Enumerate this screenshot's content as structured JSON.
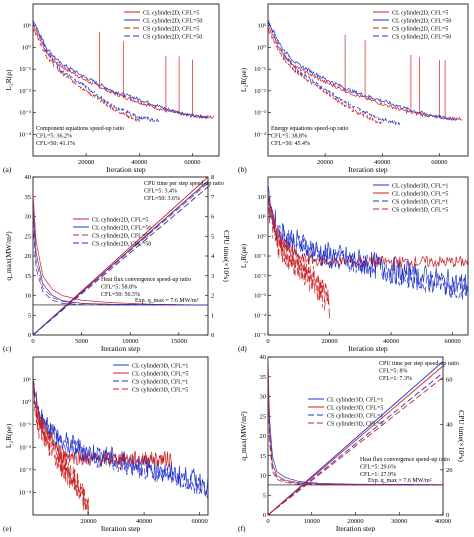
{
  "colors": {
    "red": "#cc2222",
    "blue": "#2233cc",
    "axis": "#000000"
  },
  "chart_data": [
    {
      "id": "a",
      "panel_label": "(a)",
      "type": "line",
      "log_y": true,
      "xlabel": "Iteration step",
      "ylabel": "L₂R(ρ)",
      "xlim": [
        0,
        70000
      ],
      "ylim": [
        1e-05,
        100
      ],
      "xticks": [
        20000,
        40000,
        60000
      ],
      "yticks": [
        0.0001,
        0.001,
        0.01,
        0.1,
        1,
        10
      ],
      "yticklabels": [
        "10⁻⁴",
        "10⁻³",
        "10⁻²",
        "10⁻¹",
        "10⁰",
        "10¹"
      ],
      "legend": "top-right",
      "annotation": [
        "Component equations speed-up ratio",
        "CFL=5: 36.2%",
        "CFL=50: 41.1%"
      ],
      "series": [
        {
          "name": "CL cylinder2D, CFL=5",
          "color": "#cc2222",
          "dash": "none",
          "x": [
            0,
            5000,
            10000,
            20000,
            30000,
            40000,
            50000,
            60000,
            68000
          ],
          "y": [
            12,
            0.6,
            0.15,
            0.03,
            0.008,
            0.003,
            0.0012,
            0.0007,
            0.0006
          ],
          "spikes": [
            25000,
            34000,
            50000,
            55000,
            60000
          ]
        },
        {
          "name": "CL cylinder2D, CFL=50",
          "color": "#2233cc",
          "dash": "none",
          "x": [
            0,
            5000,
            10000,
            20000,
            30000,
            40000,
            50000,
            60000,
            66000
          ],
          "y": [
            20,
            1,
            0.2,
            0.04,
            0.01,
            0.004,
            0.0015,
            0.0007,
            0.0006
          ],
          "spikes": []
        },
        {
          "name": "CS cylinder2D, CFL=5",
          "color": "#cc2222",
          "dash": "6,3",
          "x": [
            0,
            5000,
            10000,
            20000,
            30000,
            40000
          ],
          "y": [
            8,
            0.4,
            0.08,
            0.01,
            0.0015,
            0.0004
          ],
          "spikes": []
        },
        {
          "name": "CS cylinder2D, CFL=50",
          "color": "#2233cc",
          "dash": "6,3",
          "x": [
            0,
            5000,
            10000,
            20000,
            30000,
            40000,
            48000
          ],
          "y": [
            15,
            0.7,
            0.1,
            0.015,
            0.002,
            0.0006,
            0.0004
          ],
          "spikes": []
        }
      ]
    },
    {
      "id": "b",
      "panel_label": "(b)",
      "type": "line",
      "log_y": true,
      "xlabel": "Iteration step",
      "ylabel": "L₂R(ρe)",
      "xlim": [
        0,
        70000
      ],
      "ylim": [
        1e-05,
        100
      ],
      "xticks": [
        20000,
        40000,
        60000
      ],
      "yticks": [
        0.0001,
        0.001,
        0.01,
        0.1,
        1,
        10
      ],
      "yticklabels": [
        "10⁻⁴",
        "10⁻³",
        "10⁻²",
        "10⁻¹",
        "10⁰",
        "10¹"
      ],
      "legend": "top-right",
      "annotation": [
        "Energy equations speed-up ratio",
        "CFL=5: 38.8%",
        "CFL=50: 45.4%"
      ],
      "series": [
        {
          "name": "CL cylinder2D, CFL=5",
          "color": "#cc2222",
          "dash": "none",
          "x": [
            0,
            5000,
            10000,
            20000,
            30000,
            40000,
            50000,
            60000,
            68000
          ],
          "y": [
            10,
            0.5,
            0.12,
            0.025,
            0.007,
            0.0025,
            0.001,
            0.0006,
            0.0005
          ],
          "spikes": [
            27000,
            34000,
            50000,
            53000,
            60000,
            62000
          ]
        },
        {
          "name": "CL cylinder2D, CFL=50",
          "color": "#2233cc",
          "dash": "none",
          "x": [
            0,
            5000,
            10000,
            20000,
            30000,
            40000,
            50000,
            60000,
            66000
          ],
          "y": [
            18,
            0.9,
            0.18,
            0.035,
            0.009,
            0.0035,
            0.0013,
            0.0006,
            0.0005
          ],
          "spikes": []
        },
        {
          "name": "CS cylinder2D, CFL=5",
          "color": "#cc2222",
          "dash": "6,3",
          "x": [
            0,
            5000,
            10000,
            20000,
            30000,
            40000
          ],
          "y": [
            7,
            0.35,
            0.07,
            0.009,
            0.0012,
            0.0003
          ],
          "spikes": []
        },
        {
          "name": "CS cylinder2D, CFL=50",
          "color": "#2233cc",
          "dash": "6,3",
          "x": [
            0,
            5000,
            10000,
            20000,
            30000,
            40000,
            46000
          ],
          "y": [
            14,
            0.6,
            0.09,
            0.012,
            0.0018,
            0.0005,
            0.0003
          ],
          "spikes": []
        }
      ]
    },
    {
      "id": "c",
      "panel_label": "(c)",
      "type": "line",
      "log_y": false,
      "xlabel": "Iteration step",
      "ylabel": "q_max(MW/m²)",
      "y2label": "CPU time(×10³s)",
      "xlim": [
        0,
        18000
      ],
      "ylim": [
        0,
        40
      ],
      "y2lim": [
        0,
        8
      ],
      "xticks": [
        0,
        5000,
        10000,
        15000
      ],
      "yticks": [
        0,
        5,
        10,
        15,
        20,
        25,
        30,
        35,
        40
      ],
      "y2ticks": [
        0,
        1,
        2,
        3,
        4,
        5,
        6,
        7,
        8
      ],
      "legend": "upper-left",
      "annotation_top": [
        "CPU time per step speed-up ratio",
        "CFL=5: 3.4%",
        "CFL=50: 3.6%"
      ],
      "annotation": [
        "Heat flux convergence speed-up ratio",
        "CFL=5: 58.8%",
        "CFL=50: 56.5%"
      ],
      "exp_label": "Exp. q_max = 7.6 MW/m²",
      "exp_value": 7.6,
      "series": [
        {
          "name": "CL cylinder2D, CFL=5",
          "color": "#cc2222",
          "dash": "none",
          "x": [
            0,
            300,
            1000,
            2000,
            3000,
            5000,
            8000,
            12000,
            18000
          ],
          "y": [
            36,
            24,
            15,
            11.5,
            10,
            8.8,
            8.2,
            7.8,
            7.6
          ]
        },
        {
          "name": "CL cylinder2D, CFL=50",
          "color": "#2233cc",
          "dash": "none",
          "x": [
            0,
            300,
            1000,
            2000,
            3000,
            5000,
            8000,
            12000,
            18000
          ],
          "y": [
            33,
            21,
            13,
            10,
            8.7,
            8,
            7.8,
            7.7,
            7.6
          ]
        },
        {
          "name": "CS cylinder2D, CFL=5",
          "color": "#cc2222",
          "dash": "6,3",
          "x": [
            0,
            300,
            1000,
            2000,
            3000,
            5000,
            8000,
            12000,
            18000
          ],
          "y": [
            31,
            19,
            12,
            9.5,
            8.5,
            8,
            7.7,
            7.6,
            7.6
          ]
        },
        {
          "name": "CS cylinder2D, CFL=50",
          "color": "#2233cc",
          "dash": "6,3",
          "x": [
            0,
            300,
            1000,
            2000,
            3000,
            5000,
            8000,
            12000,
            18000
          ],
          "y": [
            28,
            17,
            11,
            8.8,
            8,
            7.7,
            7.6,
            7.6,
            7.6
          ]
        }
      ],
      "cpu_series": [
        {
          "color": "#cc2222",
          "dash": "none",
          "x": [
            0,
            18000
          ],
          "y": [
            0,
            8
          ]
        },
        {
          "color": "#2233cc",
          "dash": "none",
          "x": [
            0,
            18000
          ],
          "y": [
            0,
            7.8
          ]
        },
        {
          "color": "#cc2222",
          "dash": "6,3",
          "x": [
            0,
            18000
          ],
          "y": [
            0,
            7.7
          ]
        },
        {
          "color": "#2233cc",
          "dash": "6,3",
          "x": [
            0,
            18000
          ],
          "y": [
            0,
            7.5
          ]
        }
      ]
    },
    {
      "id": "d",
      "panel_label": "(d)",
      "type": "line",
      "log_y": true,
      "xlabel": "Iteration step",
      "ylabel": "L₂R(ρe)",
      "xlim": [
        0,
        65000
      ],
      "ylim": [
        1e-05,
        1000
      ],
      "xticks": [
        0,
        20000,
        40000,
        60000
      ],
      "yticks": [
        1e-05,
        0.0001,
        0.001,
        0.01,
        0.1,
        1,
        10,
        100
      ],
      "yticklabels": [
        "10⁻⁵",
        "10⁻⁴",
        "10⁻³",
        "10⁻²",
        "10⁻¹",
        "10⁰",
        "10¹",
        "10²"
      ],
      "legend": "top-right",
      "series": [
        {
          "name": "CL cylinder3D, CFL=1",
          "color": "#2233cc",
          "dash": "none",
          "x": [
            0,
            3000,
            10000,
            20000,
            30000,
            40000,
            50000,
            60000,
            65000
          ],
          "y": [
            100,
            2,
            0.4,
            0.1,
            0.05,
            0.02,
            0.008,
            0.004,
            0.003
          ],
          "noise": 0.7
        },
        {
          "name": "CL cylinder3D, CFL=5",
          "color": "#cc2222",
          "dash": "none",
          "x": [
            0,
            3000,
            10000,
            20000,
            30000,
            40000,
            50000,
            60000,
            65000
          ],
          "y": [
            80,
            1,
            0.08,
            0.05,
            0.05,
            0.05,
            0.05,
            0.05,
            0.05
          ],
          "noise": 0.3
        },
        {
          "name": "CS cylinder3D, CFL=1",
          "color": "#2233cc",
          "dash": "6,3",
          "x": [
            0,
            3000,
            10000,
            20000,
            30000,
            40000,
            50000,
            60000,
            65000
          ],
          "y": [
            60,
            1.5,
            0.3,
            0.08,
            0.04,
            0.015,
            0.006,
            0.003,
            0.002
          ],
          "noise": 0.6
        },
        {
          "name": "CS cylinder3D, CFL=5",
          "color": "#cc2222",
          "dash": "6,3",
          "x": [
            0,
            3000,
            10000,
            15000,
            18000,
            20000
          ],
          "y": [
            50,
            0.5,
            0.03,
            0.005,
            0.001,
            0.0003
          ],
          "noise": 0.8
        }
      ]
    },
    {
      "id": "e",
      "panel_label": "(e)",
      "type": "line",
      "log_y": true,
      "xlabel": "Iteration step",
      "ylabel": "L₂R(ρe)",
      "xlim": [
        0,
        63000
      ],
      "ylim": [
        1e-05,
        100
      ],
      "xticks": [
        20000,
        40000,
        60000
      ],
      "yticks": [
        0.0001,
        0.001,
        0.01,
        0.1,
        1,
        10
      ],
      "yticklabels": [
        "10⁻⁴",
        "10⁻³",
        "10⁻²",
        "10⁻¹",
        "10⁰",
        "10¹"
      ],
      "legend": "top-right",
      "series": [
        {
          "name": "CL cylinder3D, CFL=1",
          "color": "#2233cc",
          "dash": "none",
          "x": [
            0,
            2000,
            10000,
            20000,
            30000,
            40000,
            50000,
            60000,
            63000
          ],
          "y": [
            8,
            0.3,
            0.02,
            0.006,
            0.003,
            0.0015,
            0.0007,
            0.0003,
            0.0002
          ],
          "noise": 0.5
        },
        {
          "name": "CL cylinder3D, CFL=5",
          "color": "#cc2222",
          "dash": "none",
          "x": [
            0,
            2000,
            10000,
            20000,
            30000,
            40000,
            50000
          ],
          "y": [
            6,
            0.2,
            0.005,
            0.003,
            0.003,
            0.003,
            0.003
          ],
          "noise": 0.35
        },
        {
          "name": "CS cylinder3D, CFL=1",
          "color": "#2233cc",
          "dash": "6,3",
          "x": [
            0,
            2000,
            10000,
            20000,
            30000,
            40000,
            50000,
            60000,
            63000
          ],
          "y": [
            5,
            0.2,
            0.015,
            0.004,
            0.002,
            0.001,
            0.0005,
            0.0002,
            0.00015
          ],
          "noise": 0.45
        },
        {
          "name": "CS cylinder3D, CFL=5",
          "color": "#cc2222",
          "dash": "6,3",
          "x": [
            0,
            2000,
            10000,
            15000,
            18000,
            20000
          ],
          "y": [
            4,
            0.1,
            0.002,
            0.0003,
            6e-05,
            2e-05
          ],
          "noise": 0.6
        }
      ]
    },
    {
      "id": "f",
      "panel_label": "(f)",
      "type": "line",
      "log_y": false,
      "xlabel": "Iteration step",
      "ylabel": "q_max(MW/m²)",
      "y2label": "CPU time(×10³s)",
      "xlim": [
        0,
        40000
      ],
      "ylim": [
        0,
        40
      ],
      "y2lim": [
        0,
        70
      ],
      "xticks": [
        0,
        10000,
        20000,
        30000,
        40000
      ],
      "yticks": [
        0,
        5,
        10,
        15,
        20,
        25,
        30,
        35,
        40
      ],
      "y2ticks": [
        0,
        20,
        40,
        60
      ],
      "legend": "upper-left",
      "annotation_top": [
        "CPU time per step speed-up ratio",
        "CFL=5: 8%",
        "CFL=1: 7.3%"
      ],
      "annotation": [
        "Heat flux convergence speed-up ratio",
        "CFL=5: 29.6%",
        "CFL=1: 27.9%"
      ],
      "exp_label": "Exp. q_max = 7.6 MW/m²",
      "exp_value": 7.6,
      "series": [
        {
          "name": "CL cylinder3D, CFL=1",
          "color": "#2233cc",
          "dash": "none",
          "x": [
            0,
            300,
            1000,
            2000,
            4000,
            7000,
            12000,
            20000,
            40000
          ],
          "y": [
            40,
            25,
            15,
            11,
            9.5,
            8.5,
            8,
            7.8,
            7.7
          ]
        },
        {
          "name": "CL cylinder3D, CFL=5",
          "color": "#cc2222",
          "dash": "none",
          "x": [
            0,
            300,
            1000,
            2000,
            4000,
            7000,
            12000,
            20000,
            40000
          ],
          "y": [
            40,
            22,
            13,
            10,
            8.8,
            8.2,
            7.8,
            7.7,
            7.6
          ]
        },
        {
          "name": "CS cylinder3D, CFL=1",
          "color": "#2233cc",
          "dash": "6,3",
          "x": [
            0,
            300,
            1000,
            2000,
            4000,
            7000,
            12000,
            20000,
            40000
          ],
          "y": [
            38,
            21,
            12,
            9.5,
            8.5,
            8,
            7.7,
            7.6,
            7.6
          ]
        },
        {
          "name": "CS cylinder3D, CFL=5",
          "color": "#cc2222",
          "dash": "6,3",
          "x": [
            0,
            300,
            1000,
            2000,
            4000,
            7000,
            12000,
            20000,
            40000
          ],
          "y": [
            36,
            19,
            11,
            9,
            8.2,
            7.8,
            7.6,
            7.6,
            7.6
          ]
        }
      ],
      "cpu_series": [
        {
          "color": "#2233cc",
          "dash": "none",
          "x": [
            0,
            40000
          ],
          "y": [
            0,
            68
          ]
        },
        {
          "color": "#cc2222",
          "dash": "none",
          "x": [
            0,
            40000
          ],
          "y": [
            0,
            66
          ]
        },
        {
          "color": "#2233cc",
          "dash": "6,3",
          "x": [
            0,
            40000
          ],
          "y": [
            0,
            63
          ]
        },
        {
          "color": "#cc2222",
          "dash": "6,3",
          "x": [
            0,
            40000
          ],
          "y": [
            0,
            61
          ]
        }
      ]
    }
  ]
}
